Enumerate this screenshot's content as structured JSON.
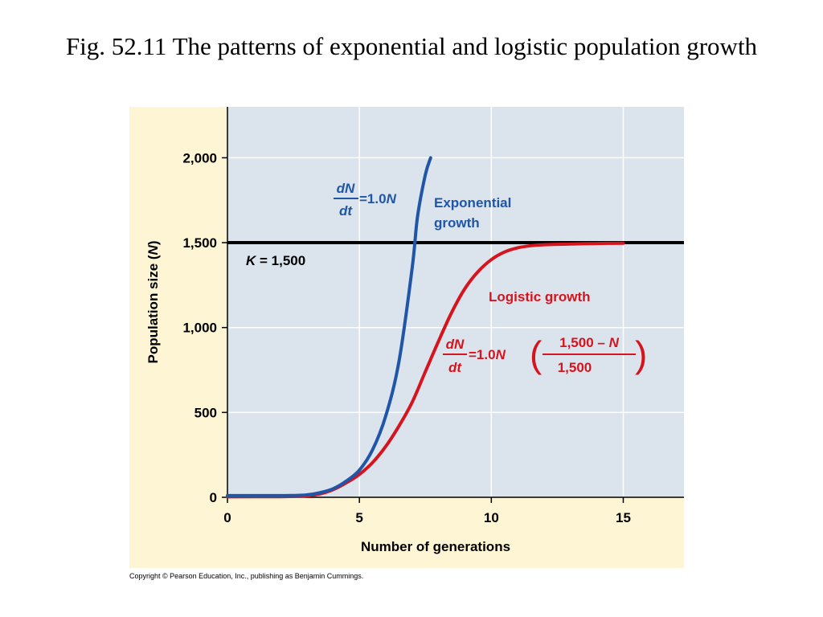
{
  "slide": {
    "title": "Fig. 52.11  The patterns of exponential and logistic population growth",
    "copyright": "Copyright © Pearson Education, Inc., publishing as Benjamin Cummings."
  },
  "colors": {
    "panel_bg": "#fdf5d3",
    "plot_bg": "#dbe3ec",
    "grid": "#ffffff",
    "exponential": "#1f56a8",
    "logistic": "#d6141d",
    "carrying_capacity": "#000000"
  },
  "chart_data": {
    "type": "line",
    "xlabel": "Number of generations",
    "ylabel": "Population size (N)",
    "xlim": [
      0,
      17.3
    ],
    "ylim": [
      0,
      2300
    ],
    "x_ticks": [
      0,
      5,
      10,
      15
    ],
    "y_ticks": [
      0,
      500,
      1000,
      1500,
      2000
    ],
    "x_tick_labels": [
      "0",
      "5",
      "10",
      "15"
    ],
    "y_tick_labels": [
      "0",
      "500",
      "1,000",
      "1,500",
      "2,000"
    ],
    "grid": true,
    "reference_lines": [
      {
        "label": "K = 1,500",
        "y": 1500
      }
    ],
    "series": [
      {
        "name": "Exponential growth",
        "x": [
          0,
          1,
          2,
          2.5,
          3,
          3.5,
          4,
          4.5,
          5,
          5.5,
          6,
          6.5,
          7,
          7.2,
          7.5,
          7.7
        ],
        "y": [
          10,
          10,
          10,
          11,
          14,
          27,
          50,
          95,
          160,
          280,
          480,
          800,
          1350,
          1650,
          1900,
          2000
        ]
      },
      {
        "name": "Logistic growth",
        "x": [
          0,
          2,
          3,
          3.5,
          4,
          4.5,
          5,
          5.5,
          6,
          6.5,
          7,
          7.5,
          8,
          8.5,
          9,
          9.5,
          10,
          10.5,
          11,
          11.5,
          12,
          13,
          14,
          15
        ],
        "y": [
          3,
          4,
          8,
          20,
          45,
          85,
          135,
          205,
          300,
          420,
          560,
          740,
          920,
          1090,
          1230,
          1330,
          1400,
          1445,
          1470,
          1482,
          1488,
          1492,
          1495,
          1497
        ]
      }
    ],
    "annotations": {
      "exponential_label": [
        "Exponential",
        "growth"
      ],
      "exponential_equation": {
        "numerator": "dN",
        "denominator": "dt",
        "rhs_prefix": "=1.0",
        "rhs_var": "N"
      },
      "logistic_label": "Logistic growth",
      "logistic_equation": {
        "numerator": "dN",
        "denominator": "dt",
        "rhs_prefix": "=1.0",
        "rhs_var": "N",
        "frac_numerator_prefix": "1,500 – ",
        "frac_numerator_var": "N",
        "frac_denominator": "1,500"
      },
      "carrying_capacity_var": "K",
      "carrying_capacity_rest": " = 1,500"
    }
  }
}
